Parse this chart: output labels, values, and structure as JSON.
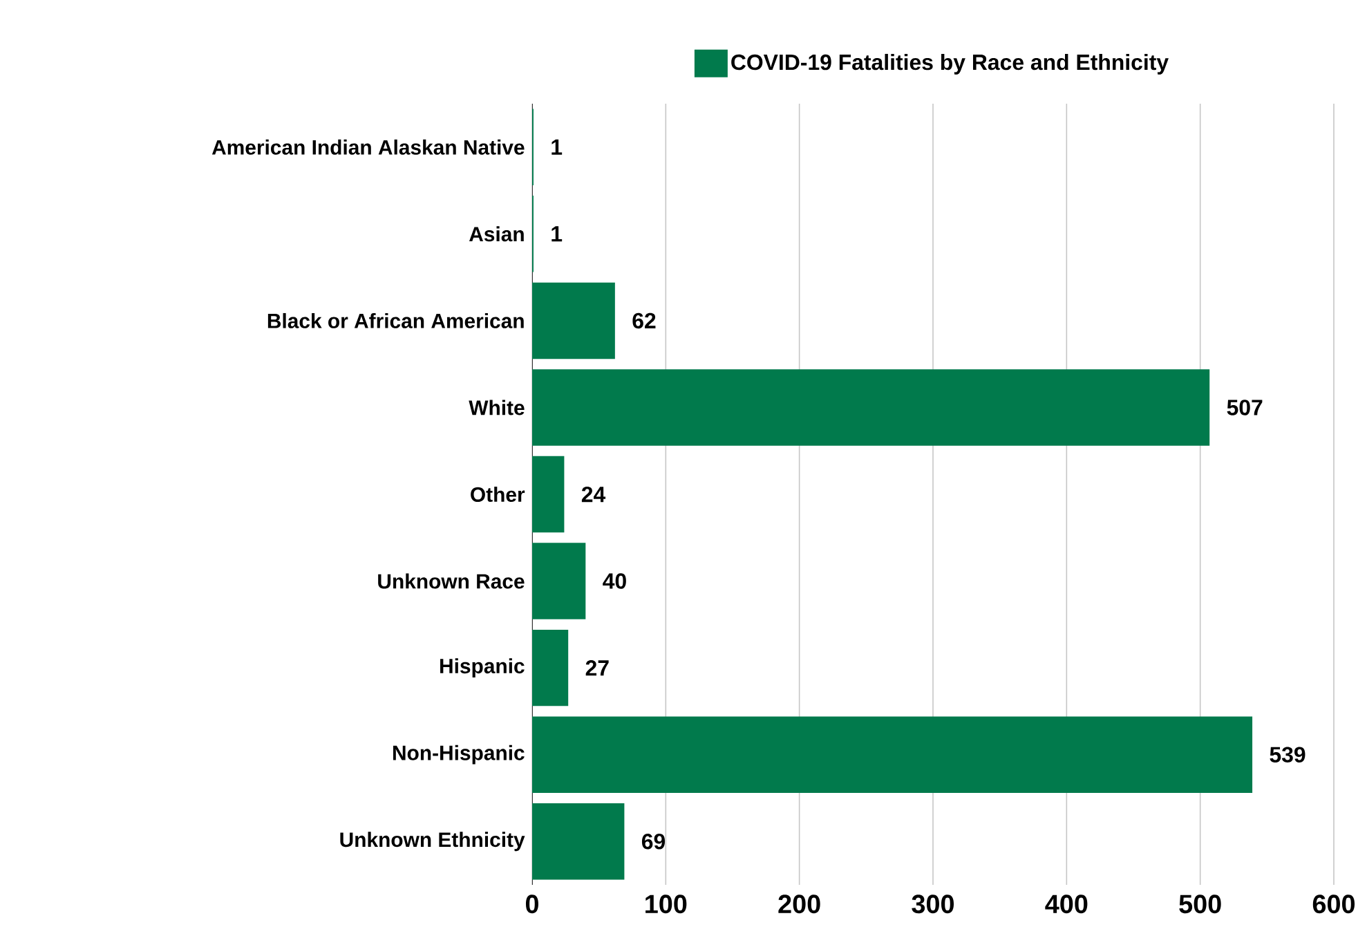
{
  "chart_data": {
    "type": "bar",
    "orientation": "horizontal",
    "categories": [
      "American Indian Alaskan Native",
      "Asian",
      "Black or African American",
      "White",
      "Other",
      "Unknown Race",
      "Hispanic",
      "Non-Hispanic",
      "Unknown Ethnicity"
    ],
    "series": [
      {
        "name": "COVID-19 Fatalities by Race and Ethnicity",
        "color": "#017a4c",
        "values": [
          1,
          1,
          62,
          507,
          24,
          40,
          27,
          539,
          69
        ]
      }
    ],
    "xlim": [
      0,
      600
    ],
    "xticks": [
      0,
      100,
      200,
      300,
      400,
      500,
      600
    ],
    "grid": "x",
    "legend": "top",
    "data_labels": true
  }
}
